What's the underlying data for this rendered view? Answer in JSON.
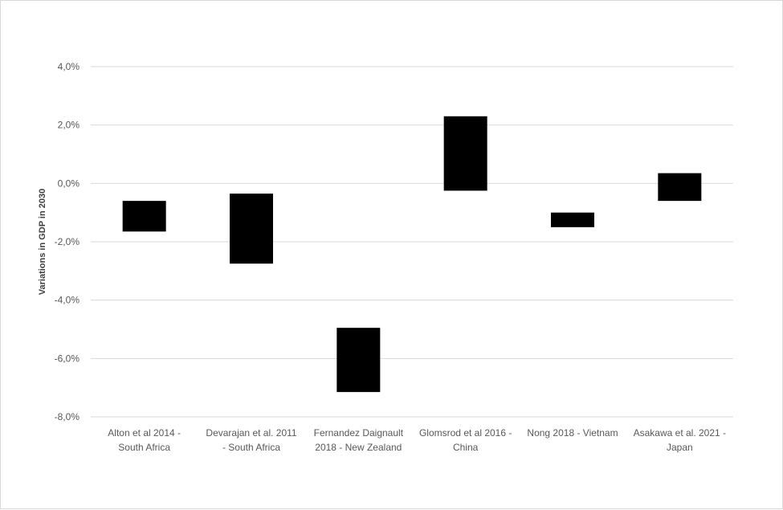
{
  "chart_data": {
    "type": "bar",
    "subtype": "floating-range",
    "title": "",
    "xlabel": "",
    "ylabel": "Variations in GDP in 2030",
    "ylim": [
      -8.0,
      4.0
    ],
    "yticks": [
      4.0,
      2.0,
      0.0,
      -2.0,
      -4.0,
      -6.0,
      -8.0
    ],
    "ytick_labels": [
      "4,0%",
      "2,0%",
      "0,0%",
      "-2,0%",
      "-4,0%",
      "-6,0%",
      "-8,0%"
    ],
    "grid": true,
    "legend": "none",
    "bar_color": "#000000",
    "categories": [
      [
        "Alton et al 2014 -",
        "South Africa"
      ],
      [
        "Devarajan et al. 2011",
        "- South Africa"
      ],
      [
        "Fernandez Daignault",
        "2018 - New Zealand"
      ],
      [
        "Glomsrod et al 2016 -",
        "China"
      ],
      [
        "Nong 2018 - Vietnam"
      ],
      [
        "Asakawa et al. 2021 -",
        "Japan"
      ]
    ],
    "ranges": [
      {
        "low": -1.65,
        "high": -0.6
      },
      {
        "low": -2.75,
        "high": -0.35
      },
      {
        "low": -7.15,
        "high": -4.95
      },
      {
        "low": -0.25,
        "high": 2.3
      },
      {
        "low": -1.5,
        "high": -1.0
      },
      {
        "low": -0.6,
        "high": 0.35
      }
    ]
  }
}
